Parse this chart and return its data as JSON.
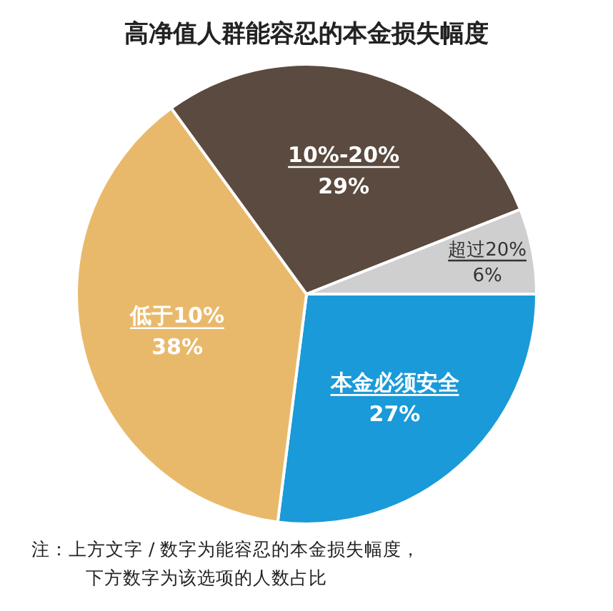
{
  "chart_data": {
    "type": "pie",
    "title": "高净值人群能容忍的本金损失幅度",
    "categories": [
      "本金必须安全",
      "低于10%",
      "10%-20%",
      "超过20%"
    ],
    "values": [
      27,
      38,
      29,
      6
    ],
    "colors": [
      "#1a9ad8",
      "#e9b96b",
      "#5b4a3f",
      "#cfcfcf"
    ],
    "value_labels": [
      "27%",
      "38%",
      "29%",
      "6%"
    ],
    "legend": false,
    "annotations": [
      "注：上方文字 / 数字为能容忍的本金损失幅度，",
      "下方数字为该选项的人数占比"
    ]
  }
}
